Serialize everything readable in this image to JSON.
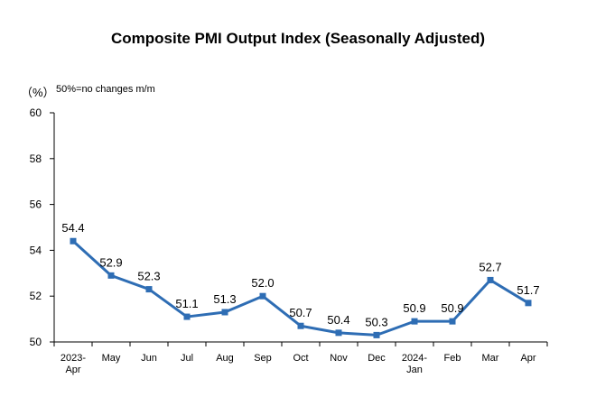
{
  "chart_data": {
    "type": "line",
    "title": "Composite PMI Output Index (Seasonally Adjusted)",
    "unit_label": "（%）",
    "note": "50%=no changes m/m",
    "categories": [
      [
        "2023-",
        "Apr"
      ],
      [
        "May"
      ],
      [
        "Jun"
      ],
      [
        "Jul"
      ],
      [
        "Aug"
      ],
      [
        "Sep"
      ],
      [
        "Oct"
      ],
      [
        "Nov"
      ],
      [
        "Dec"
      ],
      [
        "2024-",
        "Jan"
      ],
      [
        "Feb"
      ],
      [
        "Mar"
      ],
      [
        "Apr"
      ]
    ],
    "series": [
      {
        "values": [
          54.4,
          52.9,
          52.3,
          51.1,
          51.3,
          52.0,
          50.7,
          50.4,
          50.3,
          50.9,
          50.9,
          52.7,
          51.7
        ]
      }
    ],
    "value_labels": [
      "54.4",
      "52.9",
      "52.3",
      "51.1",
      "51.3",
      "52.0",
      "50.7",
      "50.4",
      "50.3",
      "50.9",
      "50.9",
      "52.7",
      "51.7"
    ],
    "yticks": [
      50,
      52,
      54,
      56,
      58,
      60
    ],
    "ylim": [
      50,
      60
    ],
    "grid": false,
    "legend": "none",
    "line_color": "#2E6DB4"
  }
}
